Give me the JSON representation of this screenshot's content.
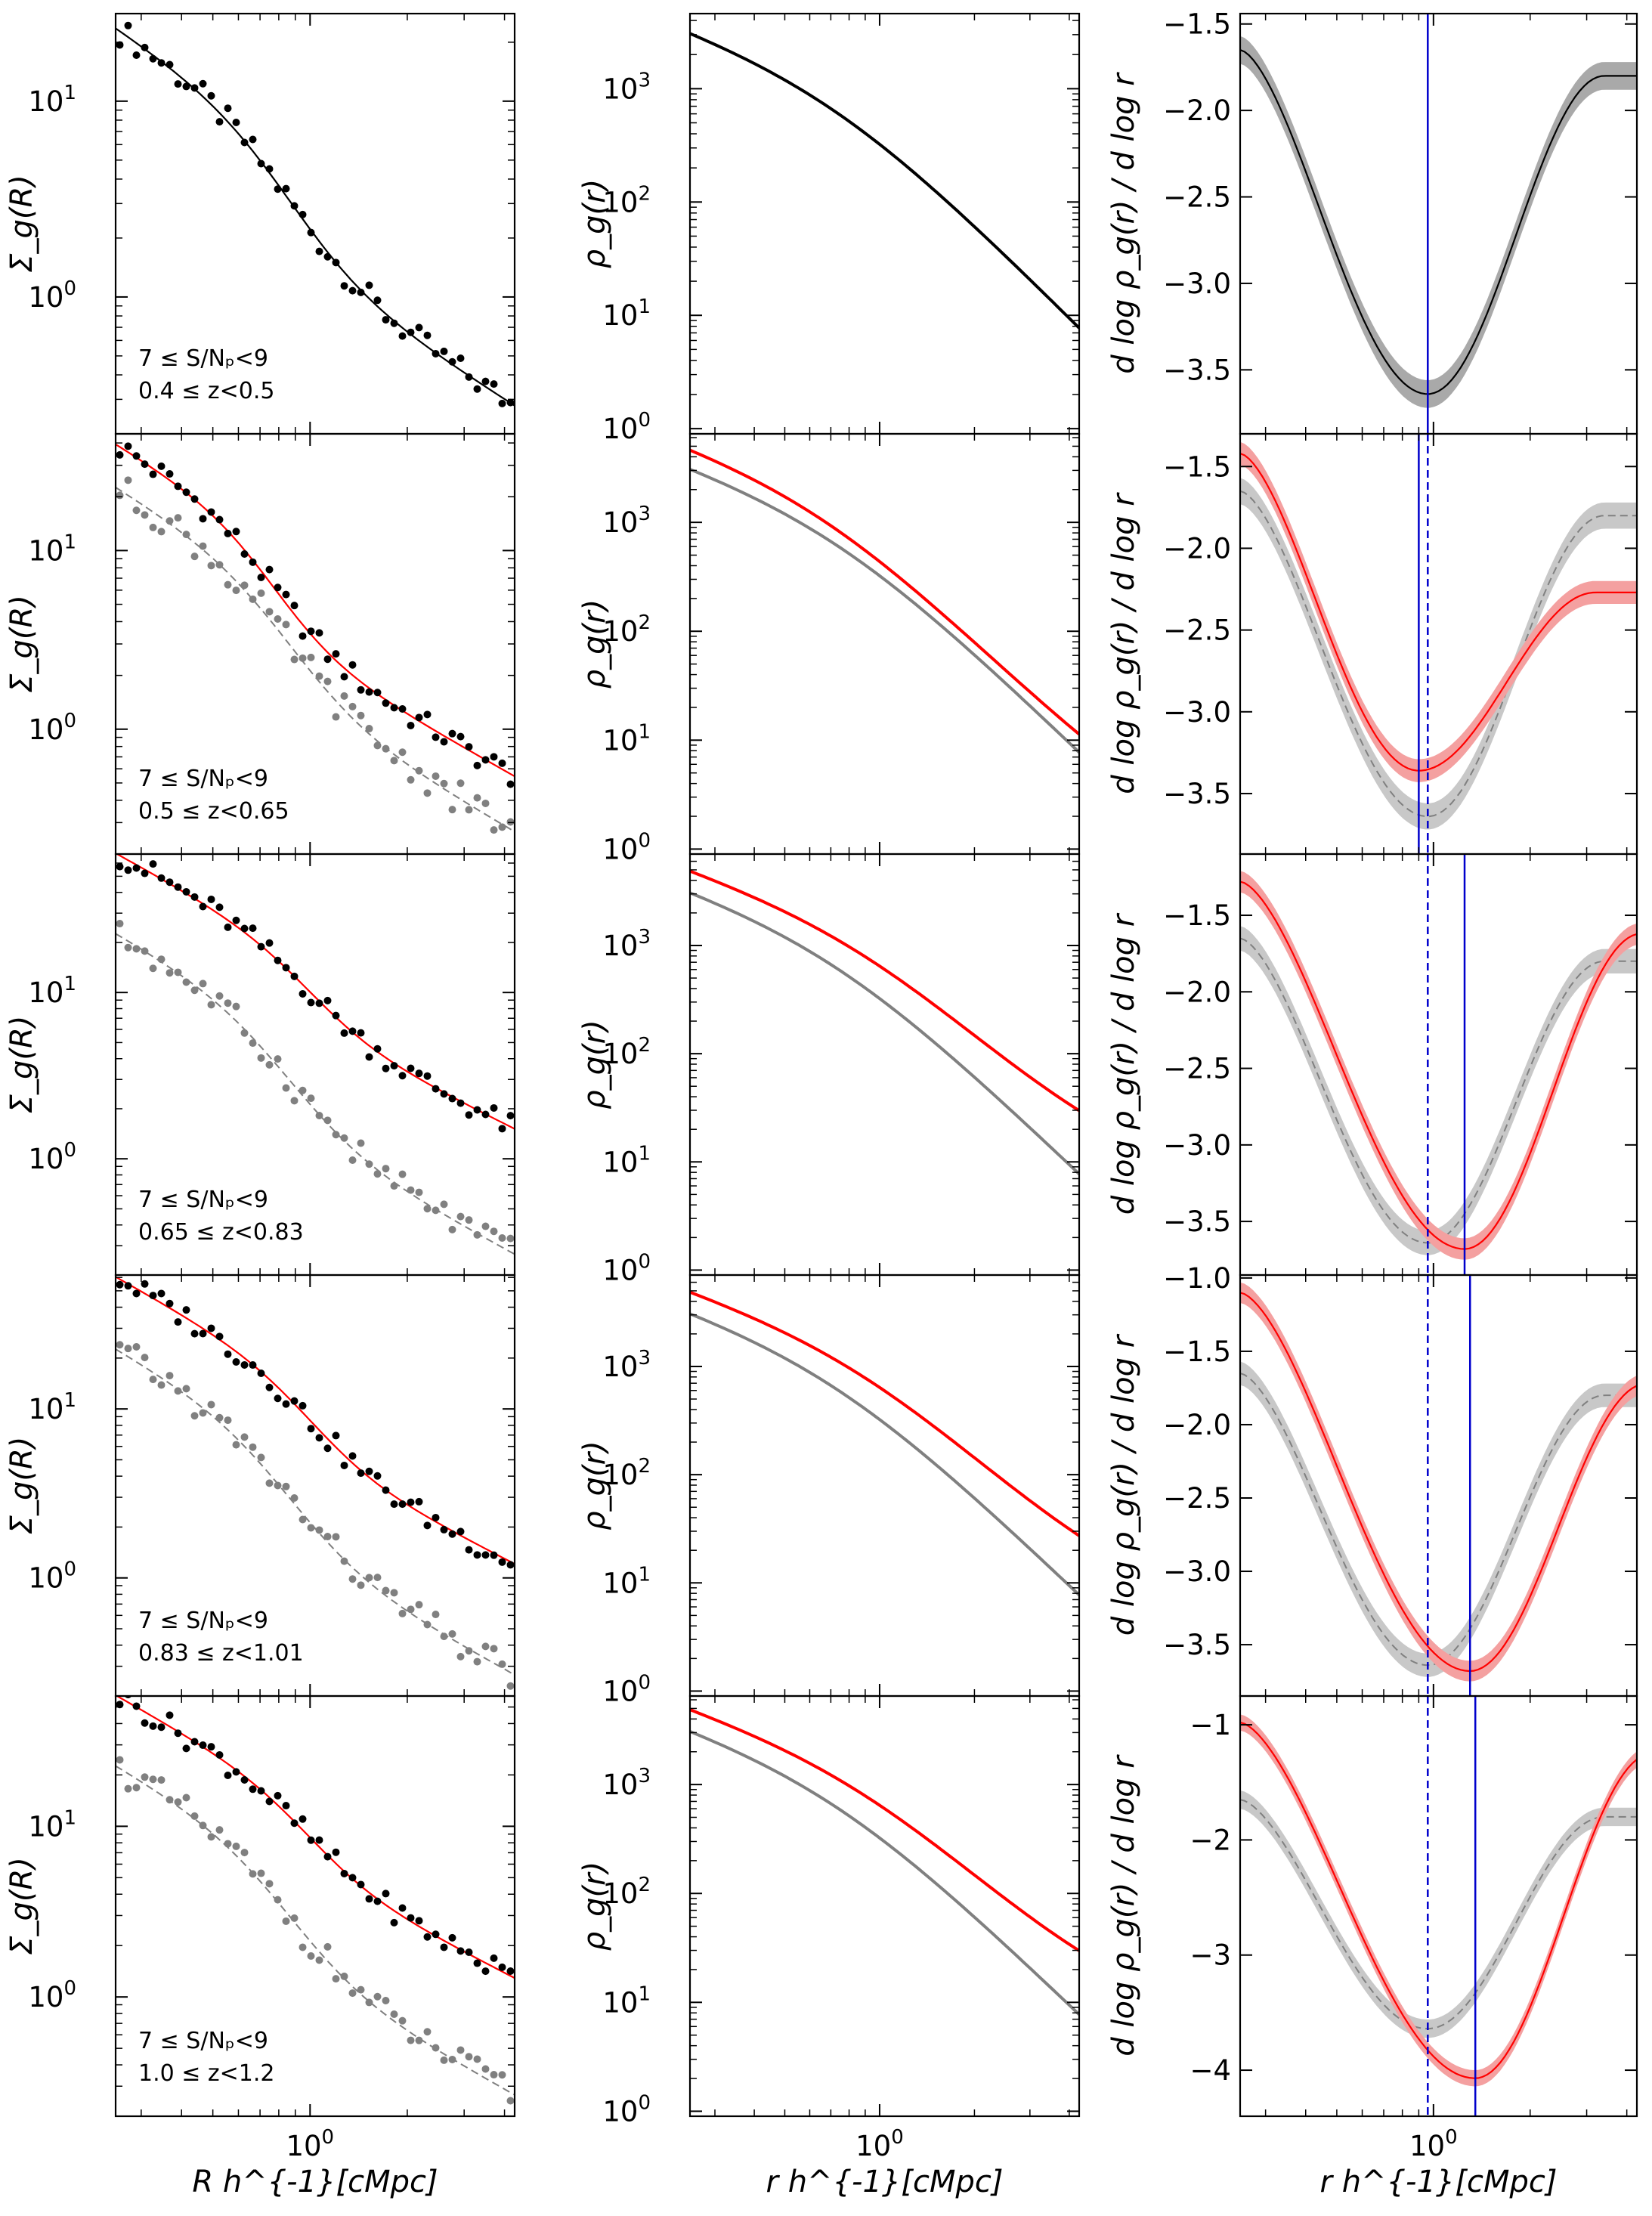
{
  "chart_data": {
    "type": "line",
    "layout": "5 rows x 3 columns grid of log-scaled subplots",
    "x_scale": "log",
    "x_range_data": [
      0.25,
      4.3
    ],
    "x_tick_label": "10^0",
    "column_xlabels": [
      "R h^{-1}[cMpc]",
      "r h^{-1}[cMpc]",
      "r h^{-1}[cMpc]"
    ],
    "column_ylabels": [
      "Σ_g(R)",
      "ρ_g(r)",
      "d log ρ_g(r) / d log r"
    ],
    "colors": {
      "reference": "#808080",
      "bin": "#ff0000",
      "first_bin": "#000000",
      "band_red": "#f4a0a0",
      "band_gray": "#c8c8c8",
      "vline": "#0000cc"
    },
    "reference_bin": {
      "sn_label": "7 ≤ S/Nₚ<9",
      "z_label": "0.4 ≤ z<0.5"
    },
    "rows": [
      {
        "sn_label": "7 ≤ S/Nₚ<9",
        "z_label": "0.4 ≤ z<0.5",
        "sigma": {
          "ylim": [
            0.2,
            28
          ],
          "yticks": [
            [
              "10^0",
              1
            ],
            [
              "10^1",
              10
            ]
          ],
          "model": {
            "A": 0.35,
            "r0": 0.72,
            "alpha": 1.8,
            "bg": 0.1
          }
        },
        "rho": {
          "ylim": [
            0.9,
            4600
          ],
          "yticks": [
            [
              "10^0",
              1
            ],
            [
              "10^1",
              10
            ],
            [
              "10^2",
              100
            ],
            [
              "10^3",
              1000
            ]
          ],
          "model": {
            "A": 0.35,
            "r0": 0.72,
            "alpha": 1.8,
            "bg": 0.1
          }
        },
        "slope": {
          "ylim": [
            -3.87,
            -1.44
          ],
          "yticks": [
            -3.5,
            -3.0,
            -2.5,
            -2.0,
            -1.5
          ],
          "curve": {
            "start": -1.65,
            "min": -3.64,
            "r_min": 0.96,
            "end": -1.8
          },
          "vline_solid": 0.96,
          "vline_dashed": null
        }
      },
      {
        "sn_label": "7 ≤ S/Nₚ<9",
        "z_label": "0.5 ≤ z<0.65",
        "sigma": {
          "ylim": [
            0.2,
            45
          ],
          "yticks": [
            [
              "10^0",
              1
            ],
            [
              "10^1",
              10
            ]
          ],
          "model": {
            "A": 0.42,
            "r0": 0.67,
            "alpha": 2.1,
            "bg": 0.18
          }
        },
        "rho": {
          "ylim": [
            0.9,
            6500
          ],
          "yticks": [
            [
              "10^0",
              1
            ],
            [
              "10^1",
              10
            ],
            [
              "10^2",
              100
            ],
            [
              "10^3",
              1000
            ]
          ],
          "model": {
            "A": 0.42,
            "r0": 0.67,
            "alpha": 2.1,
            "bg": 0.18
          }
        },
        "slope": {
          "ylim": [
            -3.87,
            -1.3
          ],
          "yticks": [
            -3.5,
            -3.0,
            -2.5,
            -2.0,
            -1.5
          ],
          "curve": {
            "start": -1.42,
            "min": -3.36,
            "r_min": 0.9,
            "end": -2.27
          },
          "vline_solid": 0.9,
          "vline_dashed": 0.96
        }
      },
      {
        "sn_label": "7 ≤ S/Nₚ<9",
        "z_label": "0.65 ≤ z<0.83",
        "sigma": {
          "ylim": [
            0.2,
            68
          ],
          "yticks": [
            [
              "10^0",
              1
            ],
            [
              "10^1",
              10
            ]
          ],
          "model": {
            "A": 0.5,
            "r0": 0.9,
            "alpha": 2.0,
            "bg": 0.55
          }
        },
        "rho": {
          "ylim": [
            0.9,
            7000
          ],
          "yticks": [
            [
              "10^0",
              1
            ],
            [
              "10^1",
              10
            ],
            [
              "10^2",
              100
            ],
            [
              "10^3",
              1000
            ]
          ],
          "model": {
            "A": 0.5,
            "r0": 0.9,
            "alpha": 2.0,
            "bg": 0.55
          }
        },
        "slope": {
          "ylim": [
            -3.85,
            -1.1
          ],
          "yticks": [
            -3.5,
            -3.0,
            -2.5,
            -2.0,
            -1.5
          ],
          "curve": {
            "start": -1.28,
            "min": -3.68,
            "r_min": 1.25,
            "end": -1.62
          },
          "vline_solid": 1.25,
          "vline_dashed": 0.96
        }
      },
      {
        "sn_label": "7 ≤ S/Nₚ<9",
        "z_label": "0.83 ≤ z<1.01",
        "sigma": {
          "ylim": [
            0.2,
            62
          ],
          "yticks": [
            [
              "10^0",
              1
            ],
            [
              "10^1",
              10
            ]
          ],
          "model": {
            "A": 0.5,
            "r0": 0.9,
            "alpha": 2.0,
            "bg": 0.45
          }
        },
        "rho": {
          "ylim": [
            0.9,
            7000
          ],
          "yticks": [
            [
              "10^0",
              1
            ],
            [
              "10^1",
              10
            ],
            [
              "10^2",
              100
            ],
            [
              "10^3",
              1000
            ]
          ],
          "model": {
            "A": 0.5,
            "r0": 0.9,
            "alpha": 2.0,
            "bg": 0.45
          }
        },
        "slope": {
          "ylim": [
            -3.85,
            -0.98
          ],
          "yticks": [
            -3.5,
            -3.0,
            -2.5,
            -2.0,
            -1.5,
            -1.0
          ],
          "curve": {
            "start": -1.1,
            "min": -3.68,
            "r_min": 1.3,
            "end": -1.72
          },
          "vline_solid": 1.3,
          "vline_dashed": 0.96
        }
      },
      {
        "sn_label": "7 ≤ S/Nₚ<9",
        "z_label": "1.0 ≤ z<1.2",
        "sigma": {
          "ylim": [
            0.2,
            58
          ],
          "yticks": [
            [
              "10^0",
              1
            ],
            [
              "10^1",
              10
            ]
          ],
          "model": {
            "A": 0.48,
            "r0": 0.9,
            "alpha": 2.0,
            "bg": 0.55
          }
        },
        "rho": {
          "ylim": [
            0.9,
            6500
          ],
          "yticks": [
            [
              "10^0",
              1
            ],
            [
              "10^1",
              10
            ],
            [
              "10^2",
              100
            ],
            [
              "10^3",
              1000
            ]
          ],
          "model": {
            "A": 0.48,
            "r0": 0.9,
            "alpha": 2.0,
            "bg": 0.55
          }
        },
        "slope": {
          "ylim": [
            -4.4,
            -0.75
          ],
          "yticks": [
            -4,
            -3,
            -2,
            -1
          ],
          "curve": {
            "start": -0.98,
            "min": -4.07,
            "r_min": 1.35,
            "end": -1.25
          },
          "vline_solid": 1.35,
          "vline_dashed": 0.96
        }
      }
    ],
    "reference_model": {
      "A": 0.35,
      "r0": 0.72,
      "alpha": 1.8,
      "bg": 0.1
    },
    "reference_slope": {
      "start": -1.65,
      "min": -3.64,
      "r_min": 0.96,
      "end": -1.8
    }
  }
}
